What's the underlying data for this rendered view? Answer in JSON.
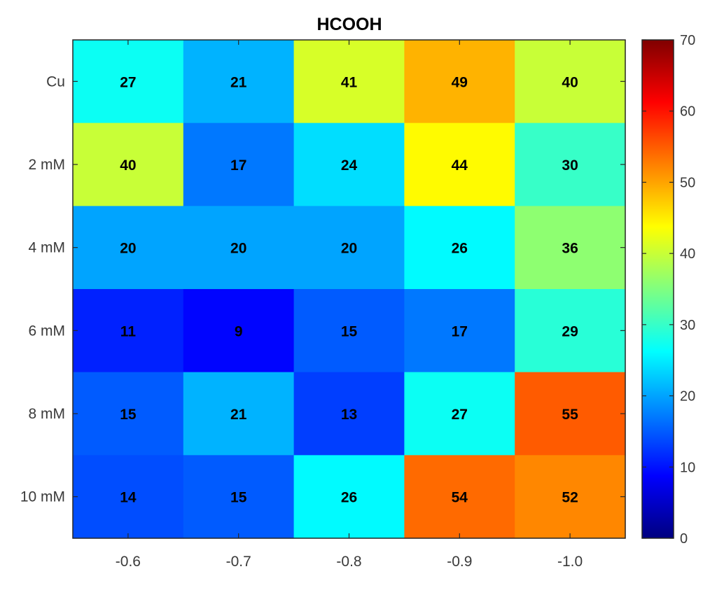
{
  "chart_data": {
    "type": "heatmap",
    "title": "HCOOH",
    "xlabel": "",
    "ylabel": "",
    "x_categories": [
      "-0.6",
      "-0.7",
      "-0.8",
      "-0.9",
      "-1.0"
    ],
    "y_categories": [
      "Cu",
      "2 mM",
      "4 mM",
      "6 mM",
      "8 mM",
      "10 mM"
    ],
    "values": [
      [
        27,
        21,
        41,
        49,
        40
      ],
      [
        40,
        17,
        24,
        44,
        30
      ],
      [
        20,
        20,
        20,
        26,
        36
      ],
      [
        11,
        9,
        15,
        17,
        29
      ],
      [
        15,
        21,
        13,
        27,
        55
      ],
      [
        14,
        15,
        26,
        54,
        52
      ]
    ],
    "colorbar": {
      "min": 0,
      "max": 70,
      "ticks": [
        0,
        10,
        20,
        30,
        40,
        50,
        60,
        70
      ],
      "colormap": "jet"
    },
    "grid": false,
    "show_cell_values": true
  }
}
